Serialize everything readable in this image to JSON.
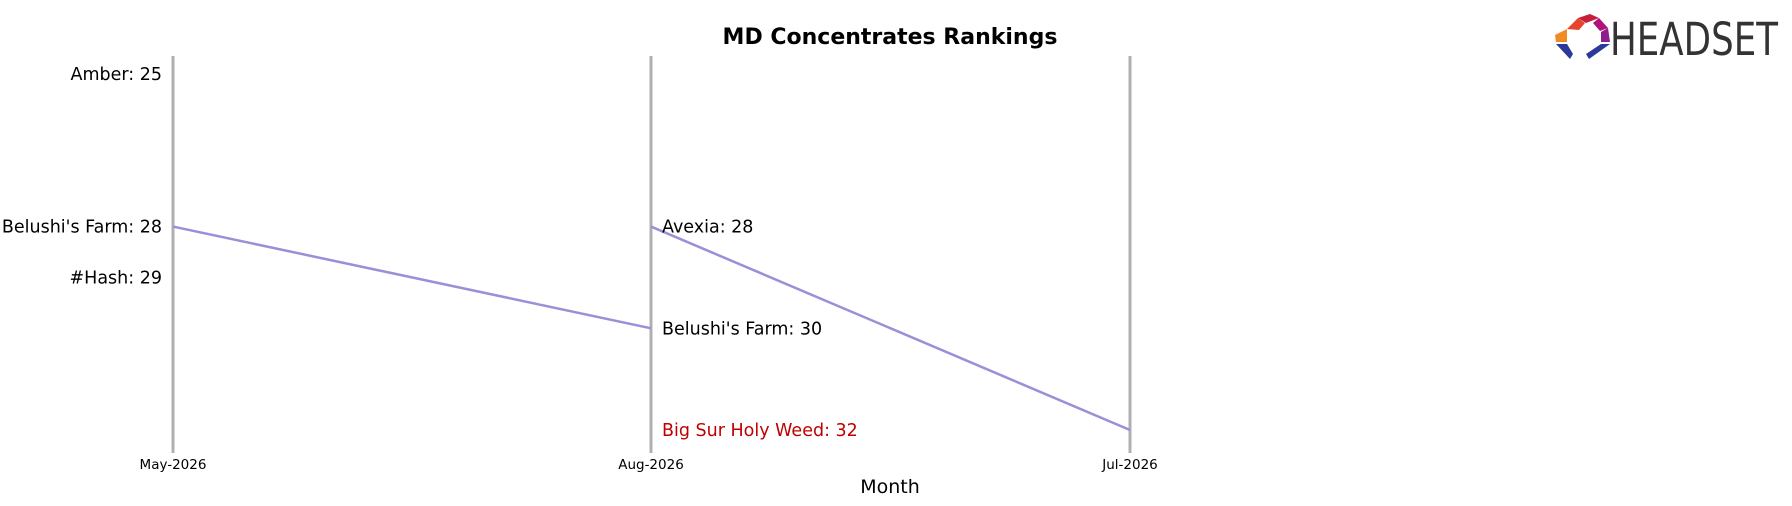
{
  "chart_data": {
    "type": "line",
    "title": "MD Concentrates Rankings",
    "xlabel": "Month",
    "ylabel": "",
    "y_inverted": true,
    "ylim": [
      25,
      32
    ],
    "grid": false,
    "categories": [
      "May-2026",
      "Aug-2026",
      "Jul-2026"
    ],
    "series": [
      {
        "name": "Belushi's Farm",
        "values": [
          28,
          30,
          null
        ],
        "color": "#9b8fd8"
      },
      {
        "name": "Avexia",
        "values": [
          null,
          28,
          32
        ],
        "color": "#9b8fd8"
      }
    ],
    "labels": [
      {
        "category": "May-2026",
        "text": "Amber: 25",
        "rank": 25,
        "color": "#000000"
      },
      {
        "category": "May-2026",
        "text": "Belushi's Farm: 28",
        "rank": 28,
        "color": "#000000"
      },
      {
        "category": "May-2026",
        "text": "#Hash: 29",
        "rank": 29,
        "color": "#000000"
      },
      {
        "category": "Aug-2026",
        "text": "Avexia: 28",
        "rank": 28,
        "color": "#000000"
      },
      {
        "category": "Aug-2026",
        "text": "Belushi's Farm: 30",
        "rank": 30,
        "color": "#000000"
      },
      {
        "category": "Aug-2026",
        "text": "Big Sur Holy Weed: 32",
        "rank": 32,
        "color": "#c00000"
      }
    ]
  },
  "logo": {
    "text": "HEADSET"
  },
  "colors": {
    "vline": "#b0b0b0",
    "line": "#9b8fd8",
    "highlight": "#c00000"
  }
}
